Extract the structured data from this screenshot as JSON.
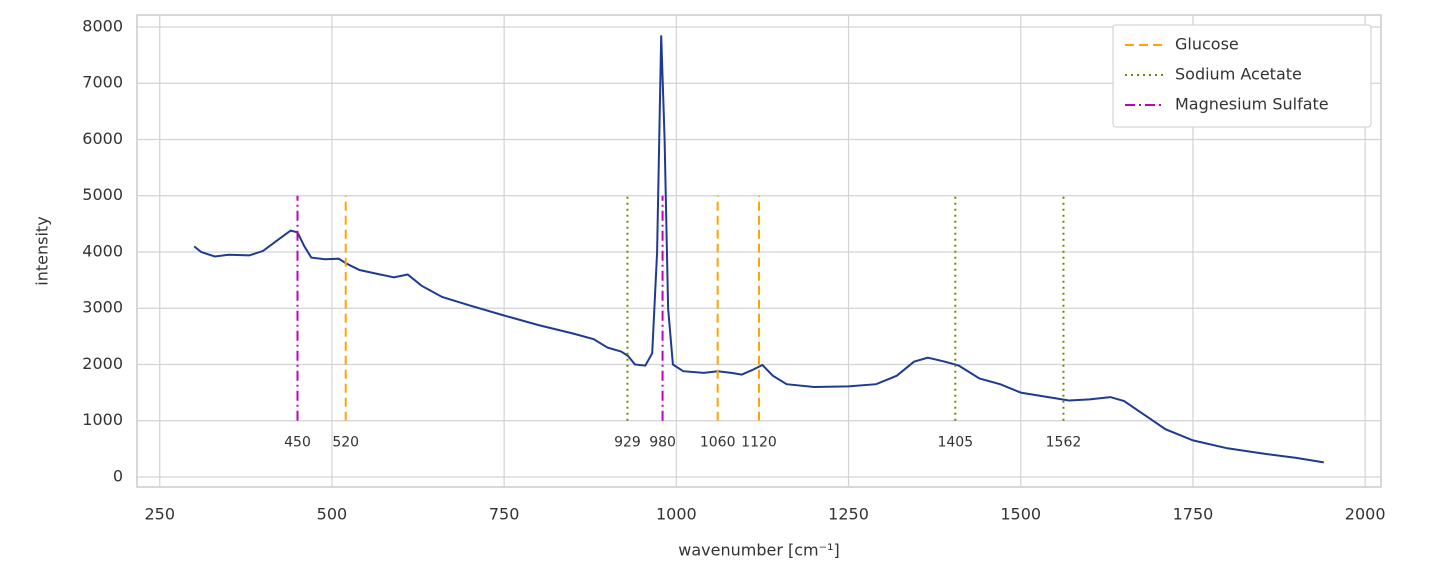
{
  "chart_data": {
    "type": "line",
    "xlabel": "wavenumber [cm⁻¹]",
    "ylabel": "intensity",
    "xlim": [
      217,
      2023
    ],
    "ylim": [
      -178,
      8213
    ],
    "xticks": [
      250,
      500,
      750,
      1000,
      1250,
      1500,
      1750,
      2000
    ],
    "yticks": [
      0,
      1000,
      2000,
      3000,
      4000,
      5000,
      6000,
      7000,
      8000
    ],
    "grid": true,
    "legend": "upper right",
    "spectrum": {
      "color": "#1f3a93",
      "x": [
        300,
        310,
        330,
        350,
        380,
        400,
        420,
        440,
        450,
        460,
        470,
        490,
        510,
        520,
        540,
        570,
        590,
        610,
        630,
        660,
        700,
        750,
        800,
        850,
        880,
        900,
        920,
        930,
        940,
        955,
        965,
        972,
        978,
        983,
        988,
        995,
        1010,
        1040,
        1060,
        1080,
        1095,
        1110,
        1125,
        1140,
        1160,
        1200,
        1250,
        1290,
        1320,
        1345,
        1365,
        1390,
        1410,
        1440,
        1470,
        1500,
        1540,
        1570,
        1600,
        1630,
        1650,
        1680,
        1710,
        1750,
        1800,
        1850,
        1900,
        1940
      ],
      "values": [
        4100,
        4000,
        3920,
        3950,
        3940,
        4020,
        4200,
        4380,
        4350,
        4100,
        3900,
        3870,
        3880,
        3800,
        3680,
        3600,
        3550,
        3600,
        3400,
        3200,
        3050,
        2870,
        2700,
        2550,
        2450,
        2300,
        2230,
        2150,
        2000,
        1980,
        2200,
        4000,
        7850,
        6000,
        3000,
        2000,
        1880,
        1850,
        1880,
        1850,
        1820,
        1900,
        1990,
        1800,
        1650,
        1600,
        1610,
        1650,
        1800,
        2050,
        2120,
        2050,
        1980,
        1750,
        1650,
        1500,
        1420,
        1360,
        1380,
        1420,
        1350,
        1100,
        850,
        650,
        510,
        420,
        340,
        260
      ]
    },
    "marker_span": [
      1000,
      5000
    ],
    "series": [
      {
        "name": "Glucose",
        "color": "#ffa500",
        "style": "dashed",
        "values": [
          520,
          1060,
          1120
        ]
      },
      {
        "name": "Sodium Acetate",
        "color": "#808000",
        "style": "dotted",
        "values": [
          929,
          1405,
          1562
        ]
      },
      {
        "name": "Magnesium Sulfate",
        "color": "#bf00bf",
        "style": "dashdot",
        "values": [
          450,
          980
        ]
      }
    ]
  }
}
